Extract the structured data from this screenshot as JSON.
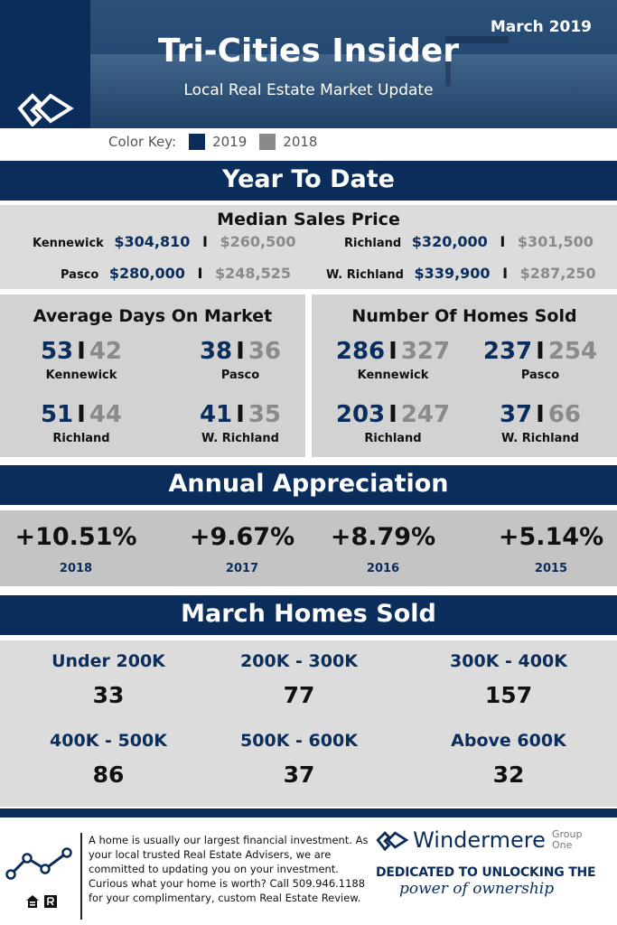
{
  "header": {
    "month": "March 2019",
    "title": "Tri-Cities Insider",
    "subtitle": "Local Real Estate Market Update"
  },
  "color_key": {
    "label": "Color Key:",
    "items": [
      {
        "label": "2019",
        "color": "#0b2d5b"
      },
      {
        "label": "2018",
        "color": "#8a8a8a"
      }
    ]
  },
  "ytd": {
    "title": "Year To Date",
    "median": {
      "title": "Median Sales Price",
      "rows": [
        {
          "city": "Kennewick",
          "v2019": "$304,810",
          "v2018": "$260,500"
        },
        {
          "city": "Richland",
          "v2019": "$320,000",
          "v2018": "$301,500"
        },
        {
          "city": "Pasco",
          "v2019": "$280,000",
          "v2018": "$248,525"
        },
        {
          "city": "W. Richland",
          "v2019": "$339,900",
          "v2018": "$287,250"
        }
      ]
    },
    "days": {
      "title": "Average Days On Market",
      "items": [
        {
          "v2019": "53",
          "v2018": "42",
          "city": "Kennewick"
        },
        {
          "v2019": "38",
          "v2018": "36",
          "city": "Pasco"
        },
        {
          "v2019": "51",
          "v2018": "44",
          "city": "Richland"
        },
        {
          "v2019": "41",
          "v2018": "35",
          "city": "W. Richland"
        }
      ]
    },
    "sold": {
      "title": "Number Of Homes Sold",
      "items": [
        {
          "v2019": "286",
          "v2018": "327",
          "city": "Kennewick"
        },
        {
          "v2019": "237",
          "v2018": "254",
          "city": "Pasco"
        },
        {
          "v2019": "203",
          "v2018": "247",
          "city": "Richland"
        },
        {
          "v2019": "37",
          "v2018": "66",
          "city": "W. Richland"
        }
      ]
    },
    "sep": "I"
  },
  "appreciation": {
    "title": "Annual Appreciation",
    "items": [
      {
        "pct": "+10.51%",
        "year": "2018"
      },
      {
        "pct": "+9.67%",
        "year": "2017"
      },
      {
        "pct": "+8.79%",
        "year": "2016"
      },
      {
        "pct": "+5.14%",
        "year": "2015"
      }
    ]
  },
  "march_sold": {
    "title": "March Homes Sold",
    "items": [
      {
        "range": "Under 200K",
        "count": "33"
      },
      {
        "range": "200K - 300K",
        "count": "77"
      },
      {
        "range": "300K - 400K",
        "count": "157"
      },
      {
        "range": "400K - 500K",
        "count": "86"
      },
      {
        "range": "500K - 600K",
        "count": "37"
      },
      {
        "range": "Above 600K",
        "count": "32"
      }
    ]
  },
  "footer": {
    "text": "A home is usually our largest financial investment. As your local trusted Real Estate Advisers, we are committed to updating you on your investment.  Curious what your home is worth? Call 509.946.1188 for your complimentary, custom Real Estate Review.",
    "brand_name": "Windermere",
    "brand_group_1": "Group",
    "brand_group_2": "One",
    "tagline_1": "DEDICATED TO UNLOCKING THE",
    "tagline_2": "power of ownership",
    "icons": [
      "line-chart-icon",
      "equal-housing-icon",
      "realtor-icon"
    ]
  }
}
